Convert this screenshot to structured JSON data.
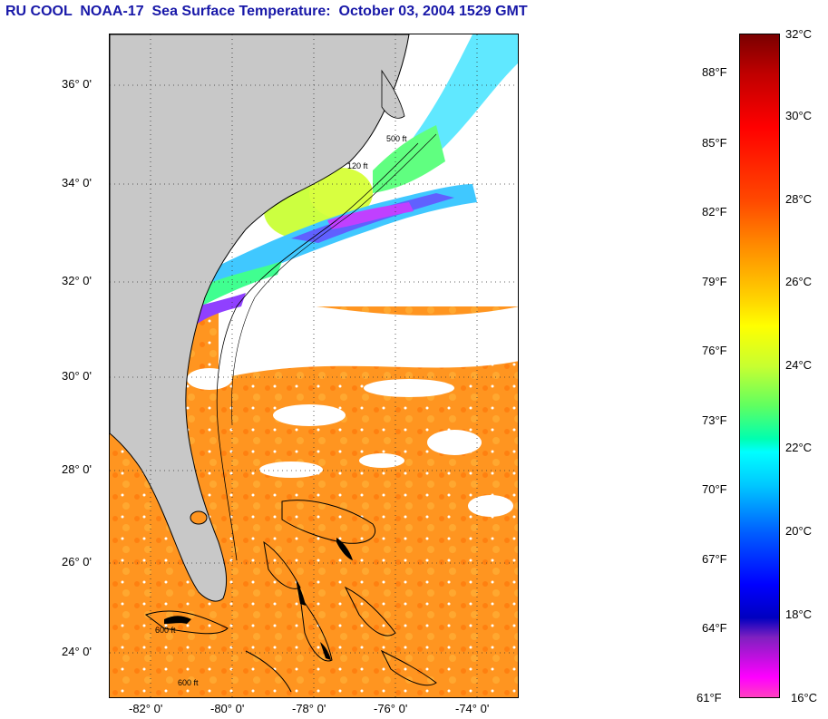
{
  "title": "RU COOL  NOAA-17  Sea Surface Temperature:  October 03, 2004 1529 GMT",
  "latitude_labels": [
    "36° 0'",
    "34° 0'",
    "32° 0'",
    "30° 0'",
    "28° 0'",
    "26° 0'",
    "24° 0'"
  ],
  "longitude_labels": [
    "-82° 0'",
    "-80° 0'",
    "-78° 0'",
    "-76° 0'",
    "-74° 0'"
  ],
  "isobath_labels": [
    "500 ft",
    "120 ft",
    "600 ft",
    "600 ft"
  ],
  "colorbar": {
    "fahrenheit_labels": [
      "88°F",
      "85°F",
      "82°F",
      "79°F",
      "76°F",
      "73°F",
      "70°F",
      "67°F",
      "64°F",
      "61°F"
    ],
    "celsius_labels": [
      "32°C",
      "30°C",
      "28°C",
      "26°C",
      "24°C",
      "22°C",
      "20°C",
      "18°C",
      "16°C"
    ]
  },
  "colors": {
    "title": "#1818a8",
    "land": "#c8c8c8",
    "cloud": "#ffffff",
    "warm_water": "#ff9a20"
  }
}
